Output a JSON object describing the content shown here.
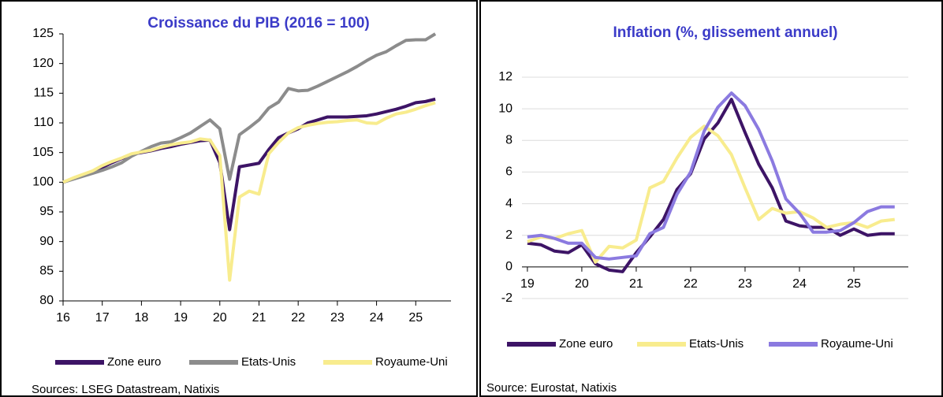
{
  "chart_data": [
    {
      "type": "line",
      "title": "Croissance du PIB (2016 = 100)",
      "source": "Sources: LSEG Datastream, Natixis",
      "x": [
        16,
        16.25,
        16.5,
        16.75,
        17,
        17.25,
        17.5,
        17.75,
        18,
        18.25,
        18.5,
        18.75,
        19,
        19.25,
        19.5,
        19.75,
        20,
        20.25,
        20.5,
        20.75,
        21,
        21.25,
        21.5,
        21.75,
        22,
        22.25,
        22.5,
        22.75,
        23,
        23.25,
        23.5,
        23.75,
        24,
        24.25,
        24.5,
        24.75,
        25,
        25.25,
        25.5
      ],
      "series": [
        {
          "name": "Zone euro",
          "color": "#3d1466",
          "values": [
            100,
            100.6,
            101.1,
            101.8,
            102.5,
            103.3,
            104.0,
            104.7,
            105.0,
            105.3,
            105.7,
            106.0,
            106.4,
            106.7,
            107.0,
            107.1,
            103.3,
            92.0,
            102.6,
            102.9,
            103.2,
            105.5,
            107.5,
            108.3,
            109.0,
            110.0,
            110.5,
            111.0,
            111.0,
            111.0,
            111.1,
            111.2,
            111.5,
            111.9,
            112.3,
            112.8,
            113.4,
            113.6,
            114.0
          ]
        },
        {
          "name": "Etats-Unis",
          "color": "#8c8c8c",
          "values": [
            100,
            100.5,
            101.0,
            101.5,
            102.0,
            102.6,
            103.3,
            104.4,
            105.2,
            106.0,
            106.6,
            106.8,
            107.5,
            108.3,
            109.4,
            110.5,
            109.0,
            100.5,
            108.0,
            109.2,
            110.5,
            112.5,
            113.5,
            115.8,
            115.4,
            115.5,
            116.2,
            117.0,
            117.8,
            118.6,
            119.5,
            120.5,
            121.4,
            122.0,
            123.0,
            123.9,
            124.0,
            124.0,
            125.0
          ]
        },
        {
          "name": "Royaume-Uni",
          "color": "#f8ec8e",
          "values": [
            100,
            100.7,
            101.3,
            101.9,
            102.8,
            103.5,
            104.1,
            104.8,
            105.1,
            105.4,
            105.9,
            106.3,
            106.6,
            106.8,
            107.3,
            107.1,
            104.5,
            83.5,
            97.5,
            98.5,
            98.0,
            104.8,
            106.7,
            108.3,
            109.2,
            109.6,
            109.9,
            110.1,
            110.2,
            110.4,
            110.5,
            110.0,
            109.9,
            110.8,
            111.5,
            111.8,
            112.3,
            112.9,
            113.4
          ]
        }
      ],
      "xlim": [
        16,
        25.9
      ],
      "ylim": [
        80,
        125
      ],
      "xticks": [
        16,
        17,
        18,
        19,
        20,
        21,
        22,
        23,
        24,
        25
      ],
      "yticks": [
        80,
        85,
        90,
        95,
        100,
        105,
        110,
        115,
        120,
        125
      ],
      "grid": false
    },
    {
      "type": "line",
      "title": "Inflation (%, glissement annuel)",
      "source": "Source: Eurostat, Natixis",
      "x": [
        19,
        19.25,
        19.5,
        19.75,
        20,
        20.25,
        20.5,
        20.75,
        21,
        21.25,
        21.5,
        21.75,
        22,
        22.25,
        22.5,
        22.75,
        23,
        23.25,
        23.5,
        23.75,
        24,
        24.25,
        24.5,
        24.75,
        25,
        25.25,
        25.5,
        25.75
      ],
      "series": [
        {
          "name": "Zone euro",
          "color": "#3d1466",
          "values": [
            1.5,
            1.4,
            1.0,
            0.9,
            1.4,
            0.2,
            -0.2,
            -0.3,
            0.9,
            1.9,
            3.0,
            4.9,
            5.9,
            8.1,
            9.1,
            10.6,
            8.5,
            6.5,
            5.0,
            2.9,
            2.6,
            2.5,
            2.5,
            2.0,
            2.4,
            2.0,
            2.1,
            2.1
          ]
        },
        {
          "name": "Etats-Unis",
          "color": "#f8ec8e",
          "values": [
            1.6,
            1.9,
            1.8,
            2.1,
            2.3,
            0.3,
            1.3,
            1.2,
            1.7,
            5.0,
            5.4,
            6.9,
            8.2,
            8.9,
            8.3,
            7.1,
            5.0,
            3.0,
            3.7,
            3.4,
            3.5,
            3.1,
            2.5,
            2.7,
            2.8,
            2.5,
            2.9,
            3.0
          ]
        },
        {
          "name": "Royaume-Uni",
          "color": "#8b7ae0",
          "values": [
            1.9,
            2.0,
            1.8,
            1.5,
            1.5,
            0.6,
            0.5,
            0.6,
            0.7,
            2.1,
            2.5,
            4.6,
            6.0,
            8.6,
            10.1,
            11.0,
            10.2,
            8.7,
            6.7,
            4.3,
            3.4,
            2.2,
            2.2,
            2.3,
            2.8,
            3.5,
            3.8,
            3.8
          ]
        }
      ],
      "xlim": [
        18.9,
        26
      ],
      "ylim": [
        -2,
        12
      ],
      "xticks": [
        19,
        20,
        21,
        22,
        23,
        24,
        25
      ],
      "yticks": [
        -2,
        0,
        2,
        4,
        6,
        8,
        10,
        12
      ],
      "grid": true
    }
  ]
}
